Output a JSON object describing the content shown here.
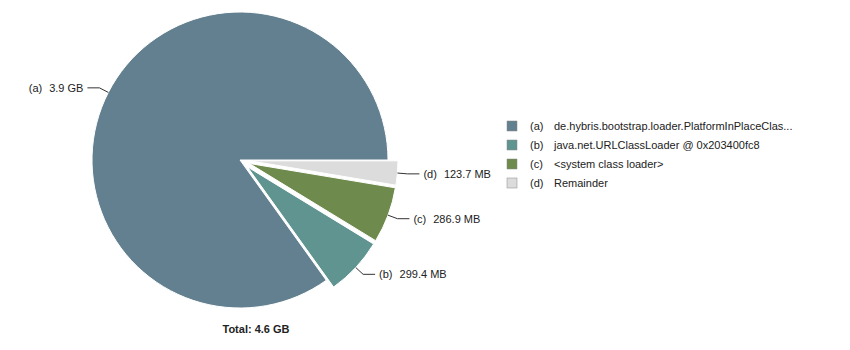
{
  "chart_data": {
    "type": "pie",
    "keys": [
      "(a)",
      "(b)",
      "(c)",
      "(d)"
    ],
    "categories": [
      "de.hybris.bootstrap.loader.PlatformInPlaceClas...",
      "java.net.URLClassLoader @ 0x203400fc8",
      "<system class loader>",
      "Remainder"
    ],
    "values": [
      3993.6,
      299.4,
      286.9,
      123.7
    ],
    "value_labels": [
      "3.9 GB",
      "299.4 MB",
      "286.9 MB",
      "123.7 MB"
    ],
    "colors": [
      "#62808f",
      "#5f9490",
      "#6e8a4c",
      "#dcdcdc"
    ],
    "total_label": "Total: 4.6 GB",
    "data_labels": true,
    "legend": "right"
  }
}
